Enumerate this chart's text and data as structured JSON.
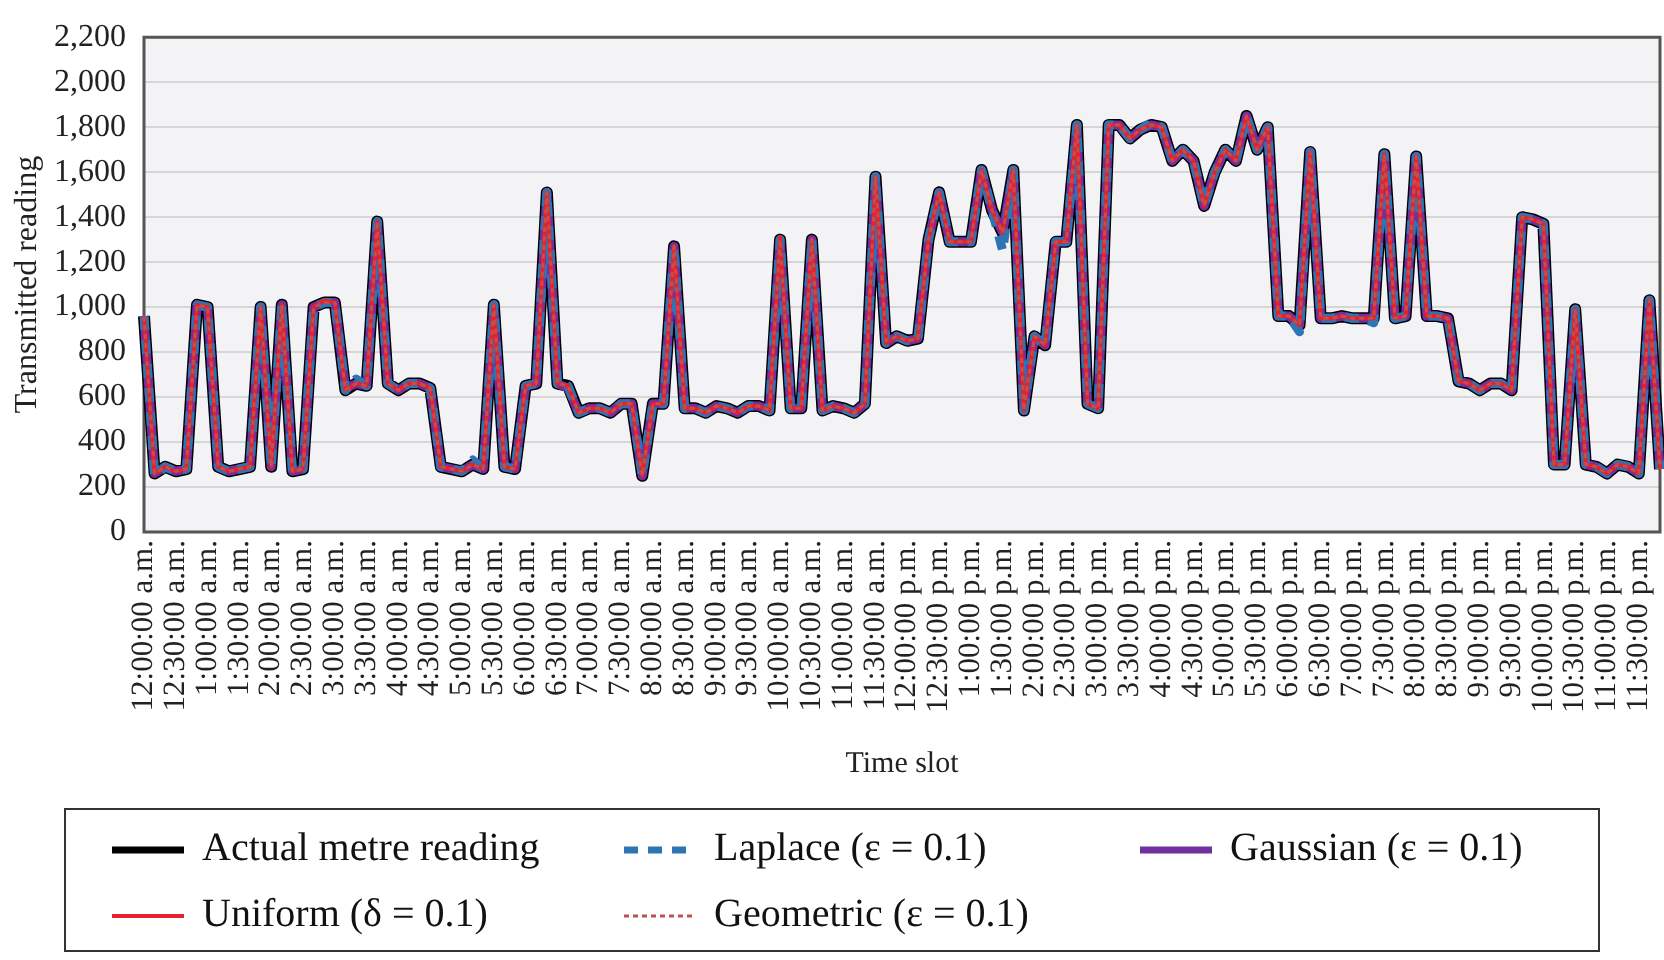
{
  "chart_data": {
    "type": "line",
    "xlabel": "Time slot",
    "ylabel": "Transmitted reading",
    "categories": [
      "12:00:00 a.m.",
      null,
      null,
      "12:30:00 a.m.",
      null,
      null,
      "1:00:00 a.m.",
      null,
      null,
      "1:30:00 a.m.",
      null,
      null,
      "2:00:00 a.m.",
      null,
      null,
      "2:30:00 a.m.",
      null,
      null,
      "3:00:00 a.m.",
      null,
      null,
      "3:30:00 a.m.",
      null,
      null,
      "4:00:00 a.m.",
      null,
      null,
      "4:30:00 a.m.",
      null,
      null,
      "5:00:00 a.m.",
      null,
      null,
      "5:30:00 a.m.",
      null,
      null,
      "6:00:00 a.m.",
      null,
      null,
      "6:30:00 a.m.",
      null,
      null,
      "7:00:00 a.m.",
      null,
      null,
      "7:30:00 a.m.",
      null,
      null,
      "8:00:00 a.m.",
      null,
      null,
      "8:30:00 a.m.",
      null,
      null,
      "9:00:00 a.m.",
      null,
      null,
      "9:30:00 a.m.",
      null,
      null,
      "10:00:00 a.m.",
      null,
      null,
      "10:30:00 a.m.",
      null,
      null,
      "11:00:00 a.m.",
      null,
      null,
      "11:30:00 a.m.",
      null,
      null,
      "12:00:00 p.m.",
      null,
      null,
      "12:30:00 p.m.",
      null,
      null,
      "1:00:00 p.m.",
      null,
      null,
      "1:30:00 p.m.",
      null,
      null,
      "2:00:00 p.m.",
      null,
      null,
      "2:30:00 p.m.",
      null,
      null,
      "3:00:00 p.m.",
      null,
      null,
      "3:30:00 p.m.",
      null,
      null,
      "4:00:00 p.m.",
      null,
      null,
      "4:30:00 p.m.",
      null,
      null,
      "5:00:00 p.m.",
      null,
      null,
      "5:30:00 p.m.",
      null,
      null,
      "6:00:00 p.m.",
      null,
      null,
      "6:30:00 p.m.",
      null,
      null,
      "7:00:00 p.m.",
      null,
      null,
      "7:30:00 p.m.",
      null,
      null,
      "8:00:00 p.m.",
      null,
      null,
      "8:30:00 p.m.",
      null,
      null,
      "9:00:00 p.m.",
      null,
      null,
      "9:30:00 p.m.",
      null,
      null,
      "10:00:00 p.m.",
      null,
      null,
      "10:30:00 p.m.",
      null,
      null,
      "11:00:00 p.m.",
      null,
      null,
      "11:30:00 p.m.",
      null,
      null
    ],
    "series": [
      {
        "name": "Actual metre reading",
        "color": "#000000",
        "line_style": "solid",
        "values": [
          960,
          260,
          290,
          270,
          280,
          1010,
          1000,
          290,
          270,
          280,
          290,
          1000,
          290,
          1010,
          270,
          280,
          1000,
          1020,
          1020,
          630,
          660,
          650,
          1380,
          660,
          630,
          660,
          660,
          640,
          290,
          280,
          270,
          300,
          280,
          1010,
          290,
          280,
          650,
          660,
          1510,
          660,
          650,
          530,
          550,
          550,
          530,
          570,
          570,
          250,
          570,
          570,
          1270,
          550,
          550,
          530,
          560,
          550,
          530,
          560,
          560,
          540,
          1300,
          550,
          550,
          1300,
          540,
          560,
          550,
          530,
          570,
          1580,
          840,
          870,
          850,
          860,
          1300,
          1510,
          1290,
          1290,
          1290,
          1610,
          1430,
          1330,
          1610,
          540,
          870,
          830,
          1290,
          1290,
          1810,
          570,
          550,
          1810,
          1810,
          1750,
          1790,
          1810,
          1800,
          1650,
          1700,
          1650,
          1450,
          1600,
          1700,
          1650,
          1850,
          1700,
          1800,
          960,
          960,
          920,
          1690,
          950,
          950,
          960,
          950,
          950,
          950,
          1680,
          950,
          960,
          1670,
          960,
          960,
          950,
          670,
          660,
          630,
          660,
          660,
          630,
          1400,
          1390,
          1370,
          300,
          300,
          990,
          300,
          290,
          260,
          300,
          290,
          260,
          1030,
          280
        ]
      },
      {
        "name": "Laplace (ε = 0.1)",
        "color": "#2e75b6",
        "line_style": "dashed",
        "values": [
          960,
          250,
          290,
          270,
          280,
          1010,
          1000,
          290,
          270,
          280,
          290,
          1000,
          290,
          1010,
          270,
          280,
          1000,
          1020,
          1020,
          630,
          680,
          650,
          1380,
          660,
          630,
          660,
          660,
          640,
          290,
          280,
          270,
          320,
          280,
          1010,
          290,
          280,
          650,
          660,
          1510,
          660,
          650,
          530,
          550,
          550,
          530,
          570,
          570,
          250,
          570,
          570,
          1270,
          550,
          550,
          530,
          560,
          550,
          530,
          560,
          560,
          540,
          1300,
          550,
          550,
          1300,
          540,
          560,
          550,
          530,
          570,
          1580,
          840,
          870,
          850,
          860,
          1300,
          1510,
          1290,
          1290,
          1290,
          1610,
          1430,
          1250,
          1610,
          540,
          870,
          830,
          1290,
          1290,
          1810,
          570,
          550,
          1810,
          1810,
          1750,
          1790,
          1820,
          1800,
          1650,
          1700,
          1650,
          1450,
          1600,
          1700,
          1650,
          1850,
          1700,
          1800,
          960,
          960,
          890,
          1690,
          950,
          950,
          960,
          950,
          950,
          930,
          1680,
          950,
          960,
          1670,
          960,
          960,
          950,
          670,
          660,
          630,
          660,
          660,
          630,
          1400,
          1390,
          1370,
          300,
          300,
          990,
          300,
          290,
          260,
          300,
          290,
          260,
          1030,
          280
        ]
      },
      {
        "name": "Gaussian (ε = 0.1)",
        "color": "#7030a0",
        "line_style": "solid",
        "values": [
          960,
          260,
          290,
          270,
          280,
          1010,
          1000,
          290,
          270,
          280,
          290,
          1000,
          290,
          1010,
          270,
          280,
          1000,
          1020,
          1020,
          640,
          660,
          650,
          1380,
          660,
          630,
          660,
          660,
          640,
          290,
          280,
          270,
          300,
          280,
          1010,
          290,
          280,
          650,
          660,
          1510,
          660,
          640,
          530,
          550,
          550,
          530,
          570,
          570,
          250,
          570,
          570,
          1270,
          550,
          550,
          530,
          560,
          550,
          530,
          560,
          560,
          540,
          1300,
          550,
          550,
          1300,
          540,
          560,
          550,
          530,
          570,
          1580,
          840,
          870,
          850,
          860,
          1300,
          1510,
          1290,
          1290,
          1290,
          1610,
          1430,
          1330,
          1610,
          540,
          870,
          830,
          1290,
          1290,
          1810,
          570,
          550,
          1810,
          1810,
          1750,
          1790,
          1810,
          1800,
          1650,
          1700,
          1650,
          1450,
          1600,
          1700,
          1650,
          1850,
          1700,
          1800,
          960,
          960,
          920,
          1690,
          950,
          950,
          960,
          950,
          950,
          950,
          1680,
          950,
          960,
          1670,
          960,
          960,
          950,
          670,
          660,
          630,
          660,
          660,
          630,
          1400,
          1390,
          1370,
          300,
          300,
          990,
          300,
          290,
          260,
          300,
          290,
          260,
          1030,
          280
        ]
      },
      {
        "name": "Uniform (δ = 0.1)",
        "color": "#e8202a",
        "line_style": "solid",
        "values": [
          960,
          260,
          290,
          270,
          280,
          1010,
          1000,
          290,
          270,
          280,
          290,
          1000,
          290,
          1010,
          270,
          280,
          1000,
          1030,
          1020,
          630,
          660,
          650,
          1380,
          660,
          630,
          660,
          660,
          640,
          290,
          280,
          270,
          300,
          280,
          1010,
          290,
          280,
          650,
          660,
          1510,
          660,
          650,
          530,
          550,
          550,
          530,
          570,
          570,
          250,
          570,
          570,
          1270,
          550,
          550,
          530,
          560,
          550,
          530,
          560,
          560,
          540,
          1310,
          550,
          550,
          1300,
          540,
          560,
          550,
          530,
          570,
          1580,
          840,
          870,
          850,
          860,
          1300,
          1510,
          1290,
          1290,
          1290,
          1610,
          1430,
          1330,
          1610,
          540,
          870,
          830,
          1290,
          1290,
          1810,
          570,
          550,
          1810,
          1810,
          1750,
          1790,
          1810,
          1800,
          1650,
          1700,
          1650,
          1450,
          1600,
          1700,
          1650,
          1850,
          1700,
          1800,
          960,
          960,
          920,
          1690,
          950,
          950,
          960,
          950,
          950,
          950,
          1680,
          950,
          960,
          1670,
          960,
          960,
          950,
          670,
          660,
          630,
          660,
          660,
          630,
          1400,
          1390,
          1370,
          300,
          300,
          990,
          300,
          290,
          260,
          300,
          290,
          260,
          1030,
          280
        ]
      },
      {
        "name": "Geometric (ε = 0.1)",
        "color": "#c0504d",
        "line_style": "dotted",
        "values": [
          960,
          260,
          290,
          270,
          280,
          1010,
          1000,
          290,
          270,
          280,
          290,
          1000,
          290,
          1010,
          270,
          280,
          1000,
          1020,
          1020,
          630,
          660,
          650,
          1380,
          660,
          630,
          660,
          660,
          640,
          290,
          280,
          270,
          300,
          280,
          1010,
          290,
          280,
          650,
          660,
          1510,
          660,
          650,
          530,
          550,
          550,
          530,
          570,
          570,
          250,
          570,
          570,
          1270,
          550,
          550,
          530,
          560,
          550,
          530,
          560,
          560,
          540,
          1300,
          550,
          550,
          1300,
          540,
          560,
          550,
          530,
          570,
          1580,
          850,
          870,
          850,
          860,
          1300,
          1510,
          1290,
          1290,
          1290,
          1610,
          1430,
          1330,
          1610,
          540,
          870,
          830,
          1290,
          1290,
          1810,
          570,
          550,
          1810,
          1810,
          1750,
          1790,
          1810,
          1800,
          1650,
          1700,
          1650,
          1450,
          1600,
          1700,
          1650,
          1850,
          1700,
          1800,
          960,
          960,
          920,
          1690,
          950,
          950,
          960,
          950,
          950,
          950,
          1680,
          950,
          960,
          1670,
          960,
          960,
          950,
          670,
          660,
          630,
          660,
          660,
          630,
          1400,
          1390,
          1370,
          300,
          300,
          990,
          300,
          290,
          260,
          300,
          290,
          260,
          1030,
          280
        ]
      }
    ],
    "ylim": [
      0,
      2200
    ],
    "yticks": [
      0,
      200,
      400,
      600,
      800,
      {
        "value": 1000,
        "label": "1,000"
      },
      {
        "value": 1200,
        "label": "1,200"
      },
      {
        "value": 1400,
        "label": "1,400"
      },
      {
        "value": 1600,
        "label": "1,600"
      },
      {
        "value": 1800,
        "label": "1,800"
      },
      {
        "value": 2000,
        "label": "2,000"
      },
      {
        "value": 2200,
        "label": "2,200"
      }
    ],
    "grid": "y",
    "legend": "bottom"
  }
}
